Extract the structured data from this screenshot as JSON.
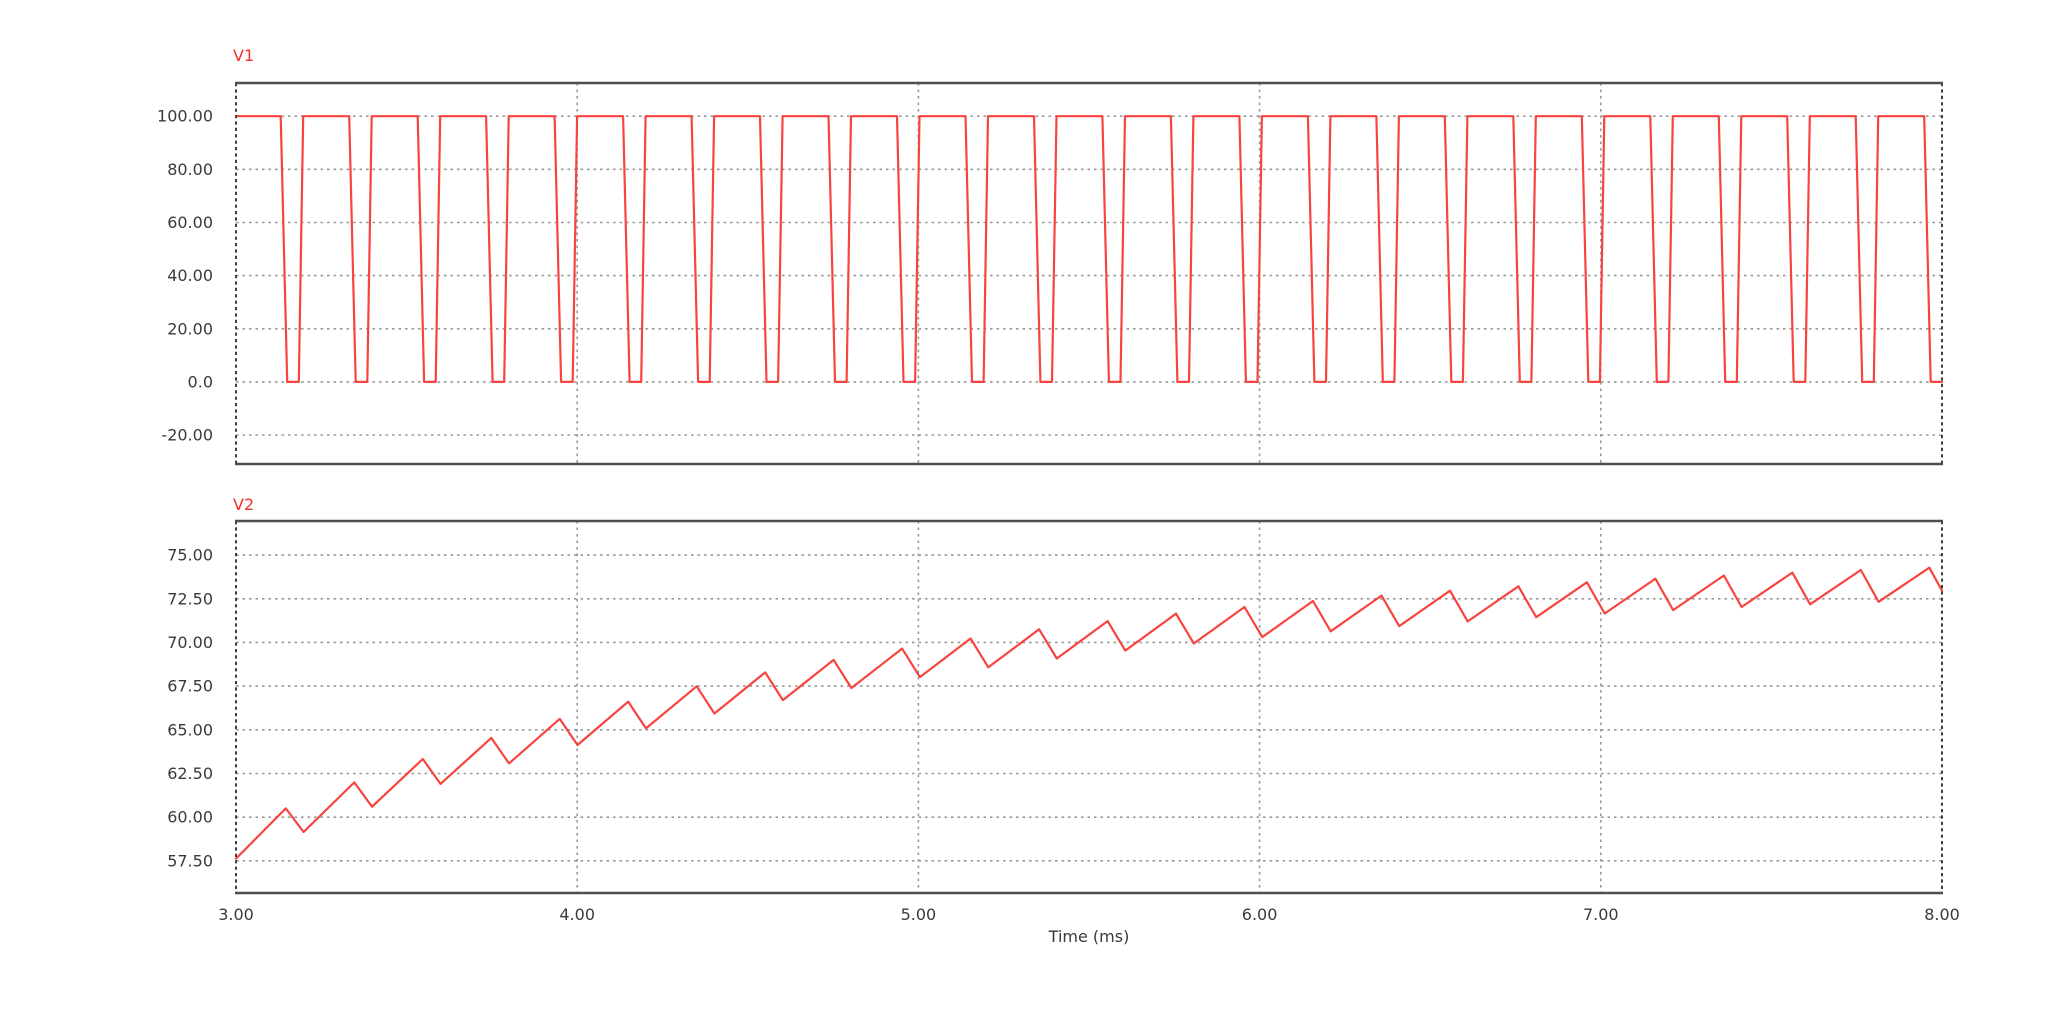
{
  "figure": {
    "background": "#ffffff",
    "kind": "simulation-waveform-viewer"
  },
  "colors": {
    "trace": "#f8443e",
    "series_label": "#f4302a",
    "tick_text": "#3a3a3a",
    "grid": "#9a9a9a",
    "border_dashed": "#3e3e3e",
    "border_solid": "#4e4e4e"
  },
  "chart_data": [
    {
      "id": "V1",
      "type": "line",
      "title": "V1",
      "grid": "dashed",
      "legend_position": "top-left",
      "x": {
        "label": "Time (ms)",
        "unit": "ms",
        "range": [
          3,
          8
        ],
        "ticks": [
          3,
          4,
          5,
          6,
          7,
          8
        ],
        "tick_labels": [
          "3.00",
          "4.00",
          "5.00",
          "6.00",
          "7.00",
          "8.00"
        ]
      },
      "y": {
        "range": [
          -30.9,
          112.5
        ],
        "ticks": [
          100,
          80,
          60,
          40,
          20,
          0,
          -20
        ],
        "tick_labels": [
          "100.00",
          "80.00",
          "60.00",
          "40.00",
          "20.00",
          "0.0",
          "-20.00"
        ]
      },
      "series": [
        {
          "name": "V1",
          "color": "#f8443e",
          "waveform": {
            "kind": "pwm_pulse_train",
            "start_level": 100,
            "high": 100,
            "low": 0,
            "first_fall_ms": 3.131,
            "period_ms": 0.2007,
            "fall_time_ms": 0.019,
            "low_time_ms": 0.034,
            "rise_time_ms": 0.013,
            "num_pulses": 25,
            "t_start_ms": 3.0,
            "t_end_ms": 8.0,
            "ends_at_level": 0
          }
        }
      ]
    },
    {
      "id": "V2",
      "type": "line",
      "title": "V2",
      "grid": "dashed",
      "legend_position": "top-left",
      "x": {
        "label": "Time (ms)",
        "unit": "ms",
        "range": [
          3,
          8
        ],
        "ticks": [
          3,
          4,
          5,
          6,
          7,
          8
        ],
        "tick_labels": [
          "3.00",
          "4.00",
          "5.00",
          "6.00",
          "7.00",
          "8.00"
        ]
      },
      "y": {
        "range": [
          55.66,
          76.95
        ],
        "ticks": [
          75,
          72.5,
          70,
          67.5,
          65,
          62.5,
          60,
          57.5
        ],
        "tick_labels": [
          "75.00",
          "72.50",
          "70.00",
          "67.50",
          "65.00",
          "62.50",
          "60.00",
          "57.50"
        ]
      },
      "series": [
        {
          "name": "V2",
          "color": "#f8443e",
          "waveform": {
            "kind": "charging_curve_with_ripple",
            "start_point": {
              "t_ms": 3.0,
              "v": 57.63
            },
            "peak_envelope": {
              "t0_ms": 3.146,
              "asymptote": 75.5,
              "amplitude": 15.0,
              "tau_ms": 1.92
            },
            "trough_envelope": {
              "t0_ms": 3.198,
              "asymptote": 73.6,
              "amplitude": 14.45,
              "tau_ms": 1.9
            },
            "period_ms": 0.2007,
            "num_cycles": 25,
            "t_end_ms": 8.0,
            "first_peak_v": 60.5,
            "first_trough_v": 59.15,
            "last_peak_v": 74.28,
            "end_value_v": 73.0
          }
        }
      ]
    }
  ]
}
